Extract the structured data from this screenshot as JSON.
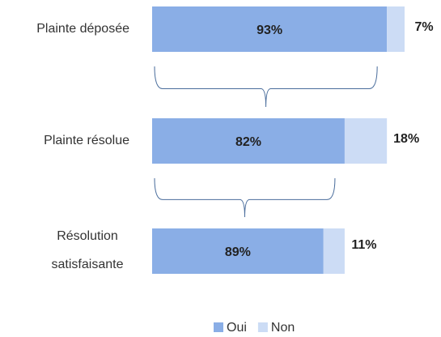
{
  "chart_data": {
    "type": "funnel_bar",
    "categories": [
      "Plainte déposée",
      "Plainte résolue",
      "Résolution satisfaisante"
    ],
    "series": [
      {
        "name": "Oui",
        "color": "#8aaee6",
        "values": [
          93,
          82,
          89
        ],
        "value_labels": [
          "93%",
          "82%",
          "89%"
        ]
      },
      {
        "name": "Non",
        "color": "#ccdcf5",
        "values": [
          7,
          18,
          11
        ],
        "value_labels": [
          "7%",
          "18%",
          "11%"
        ]
      }
    ],
    "legend": "bottom"
  }
}
